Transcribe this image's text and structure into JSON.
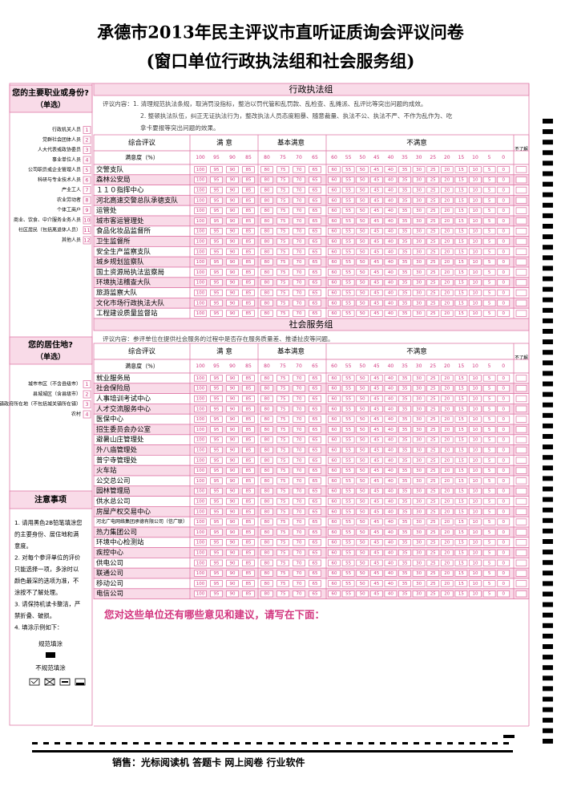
{
  "header": {
    "title": "承德市2013年民主评议市直听证质询会评议问卷",
    "subtitle": "(窗口单位行政执法组和社会服务组)"
  },
  "occupation": {
    "question": "您的主要职业或身份?",
    "hint": "（单选）",
    "options": [
      {
        "label": "行政机关人员",
        "number": "1"
      },
      {
        "label": "党群社会团体人员",
        "number": "2"
      },
      {
        "label": "人大代表或政协委员",
        "number": "3"
      },
      {
        "label": "事业单位人员",
        "number": "4"
      },
      {
        "label": "公司职员或企业管理人员",
        "number": "5"
      },
      {
        "label": "科研与专业技术人员",
        "number": "6"
      },
      {
        "label": "产业工人",
        "number": "7"
      },
      {
        "label": "农业劳动者",
        "number": "8"
      },
      {
        "label": "个体工商户",
        "number": "9"
      },
      {
        "label": "商业、饮食、中介服务业务人员",
        "number": "10"
      },
      {
        "label": "社区居民（包括离退休人员）",
        "number": "11"
      },
      {
        "label": "其他人员",
        "number": "12"
      }
    ]
  },
  "residence": {
    "question": "您的居住地?",
    "hint": "（单选）",
    "options": [
      {
        "label": "城市市区（不含县级市）",
        "number": "1"
      },
      {
        "label": "县城城区（含县级市）",
        "number": "2"
      },
      {
        "label": "乡镇政府所在地（不包括城关镇所在镇）",
        "number": "3"
      },
      {
        "label": "农村",
        "number": "4"
      }
    ]
  },
  "notes": {
    "title": "注意事项",
    "lines": [
      "1. 请用黑色2B铅笔填涂您",
      "的主要身份、居住地和满",
      "意度。",
      "2. 对每个参评单位的评价",
      "只能选择一项，多涂时以",
      "颜色最深的选项为准，不",
      "涂按不了解处理。",
      "3. 请保持机读卡整洁，严",
      "禁折叠、破损。",
      "4. 填涂示例如下："
    ],
    "correct": "规范填涂",
    "incorrect": "不规范填涂"
  },
  "table_header": {
    "overall": "综合评议",
    "satisfied": "满 意",
    "basic": "基本满意",
    "unsatisfied": "不满意",
    "unknown": "不了解",
    "rate": "满意度（%）",
    "scores": [
      100,
      95,
      90,
      85,
      80,
      75,
      70,
      65,
      60,
      55,
      50,
      45,
      40,
      35,
      30,
      25,
      20,
      15,
      10,
      5,
      0
    ]
  },
  "sections": [
    {
      "title": "行政执法组",
      "intro": [
        "评议内容：1. 清理规范执法条规，取消罚没指标，整治以罚代管和乱罚款、乱检查、乱摊派、乱评比等突出问题的成效。",
        "2. 整顿执法队伍，纠正无证执法行为，整改执法人员态度粗暴、随意裁量、执法不公、执法不严、不作为乱作为、吃",
        "拿卡要报等突出问题的效果。"
      ],
      "units": [
        "交警支队",
        "森林公安局",
        "１１０指挥中心",
        "河北高速交警总队承德支队",
        "运管处",
        "城市客运管理处",
        "食品化妆品监督所",
        "卫生监督所",
        "安全生产监察支队",
        "城乡规划监察队",
        "国土资源局执法监察局",
        "环境执法稽查大队",
        "旅游监察大队",
        "文化市场行政执法大队",
        "工程建设质量监督站"
      ]
    },
    {
      "title": "社会服务组",
      "intro": [
        "评议内容：参评单位在提供社会服务的过程中是否存在服务质量差、推诿扯皮等问题。"
      ],
      "units": [
        "就业服务局",
        "社会保险局",
        "人事培训考试中心",
        "人才交流服务中心",
        "医保中心",
        "招生委员会办公室",
        "避暑山庄管理处",
        "外八庙管理处",
        "普宁寺管理处",
        "火车站",
        "公交总公司",
        "园林管理局",
        "供水总公司",
        "房屋产权交易中心",
        "河北广电网络集团承德有限公司（信广联）",
        "热力集团公司",
        "环境中心检测站",
        "疾控中心",
        "供电公司",
        "联通公司",
        "移动公司",
        "电信公司"
      ]
    }
  ],
  "footer": {
    "question": "您对这些单位还有哪些意见和建议，请写在下面：",
    "sales": "销售：光标阅读机 答题卡 网上阅卷 行业软件"
  }
}
